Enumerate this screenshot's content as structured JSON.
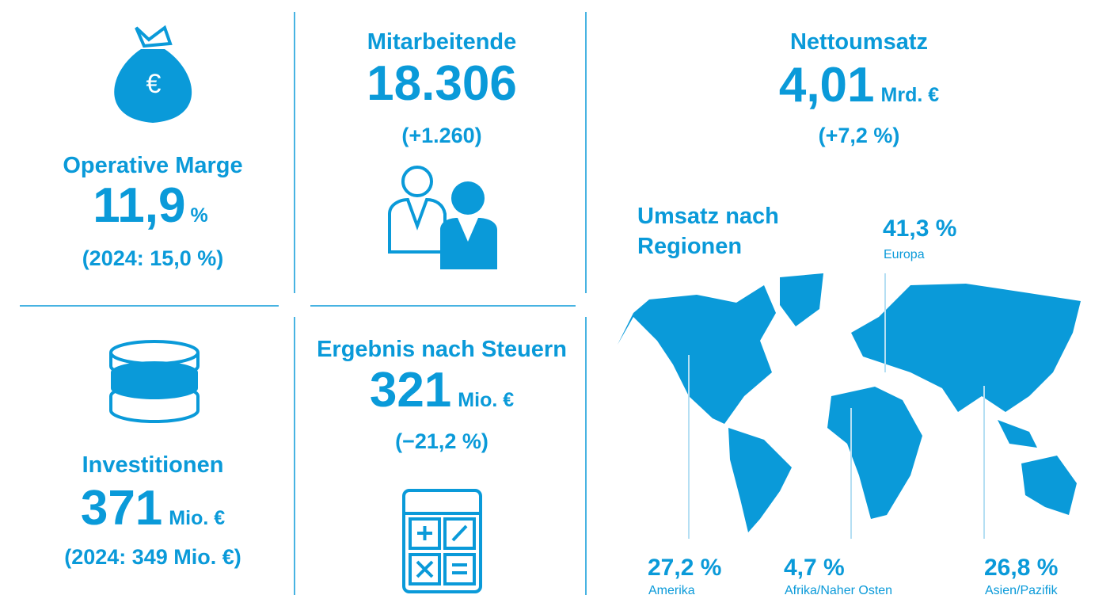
{
  "kpis": [
    {
      "label": "Operative Marge",
      "value": "11,9",
      "unit": "%",
      "change": "(2024: 15,0 %)"
    },
    {
      "label": "Mitarbeitende",
      "value": "18.306",
      "change": "(+1.260)"
    },
    {
      "label": "Nettoumsatz",
      "value": "4,01",
      "unit": "Mrd. €",
      "change": "(+7,2 %)"
    },
    {
      "label": "Investitionen",
      "value": "371",
      "unit": "Mio. €",
      "change": "(2024: 349 Mio. €)"
    },
    {
      "label": "Ergebnis nach Steuern",
      "value": "321",
      "unit": "Mio. €",
      "change": "(−21,2 %)"
    }
  ],
  "regions": {
    "title": [
      "Umsatz nach",
      "Regionen"
    ],
    "items": [
      {
        "share": "41,3 %",
        "name": "Europa"
      },
      {
        "share": "27,2 %",
        "name": "Amerika"
      },
      {
        "share": "4,7 %",
        "name": "Afrika/Naher Osten"
      },
      {
        "share": "26,8 %",
        "name": "Asien/Pazifik"
      }
    ]
  }
}
